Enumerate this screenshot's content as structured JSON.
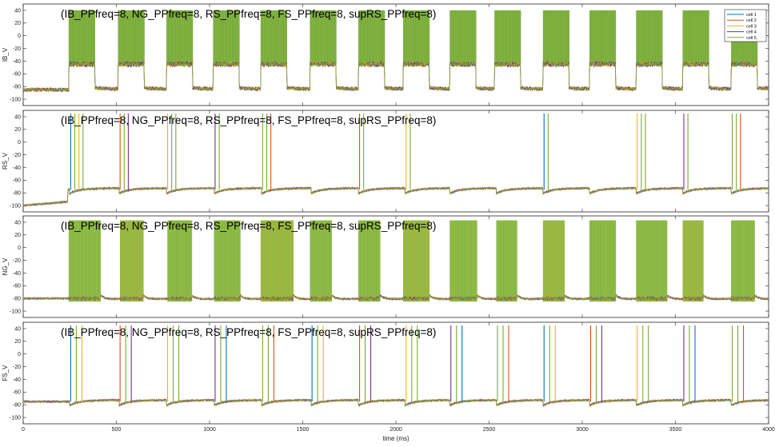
{
  "chart_data": {
    "type": "line",
    "x_label": "time (ms)",
    "x_range": [
      0,
      4000
    ],
    "x_ticks": [
      "0",
      "500",
      "1000",
      "1500",
      "2000",
      "2500",
      "3000",
      "3500",
      "4000"
    ],
    "legend": {
      "placement": "top-right",
      "entries": [
        {
          "name": "cell 1",
          "color": "#0072BD"
        },
        {
          "name": "cell 2",
          "color": "#D95319"
        },
        {
          "name": "cell 3",
          "color": "#EDB120"
        },
        {
          "name": "cell 4",
          "color": "#7E2F8E"
        },
        {
          "name": "cell 5",
          "color": "#77AC30"
        }
      ]
    },
    "panels": [
      {
        "id": "IB",
        "ylabel": "IB_V",
        "title": "(IB_PPfreq=8, NG_PPfreq=8, RS_PPfreq=8, FS_PPfreq=8, supRS_PPfreq=8)",
        "ylim": [
          -110,
          50
        ],
        "y_ticks": [
          "-100",
          "-80",
          "-60",
          "-40",
          "-20",
          "0",
          "20",
          "40"
        ],
        "baseline_mV": -85,
        "pattern": "burst",
        "events_ms": [
          245,
          510,
          770,
          1020,
          1275,
          1540,
          1800,
          2040,
          2290,
          2530,
          2790,
          3040,
          3290,
          3540,
          3800
        ],
        "burst_duration_ms": 140,
        "burst_range_mV": [
          -45,
          40
        ]
      },
      {
        "id": "RS",
        "ylabel": "RS_V",
        "title": "(IB_PPfreq=8, NG_PPfreq=8, RS_PPfreq=8, FS_PPfreq=8, supRS_PPfreq=8)",
        "ylim": [
          -110,
          50
        ],
        "y_ticks": [
          "-100",
          "-80",
          "-60",
          "-40",
          "-20",
          "0",
          "20",
          "40"
        ],
        "baseline_mV": -75,
        "initial_mV": -100,
        "pattern": "spikes",
        "events_ms": [
          250,
          515,
          770,
          1025,
          1280,
          1545,
          1800,
          2050,
          2290,
          2540,
          2790,
          3040,
          3290,
          3540,
          3800
        ],
        "spikes_per_event": [
          4,
          3,
          3,
          2,
          3,
          0,
          2,
          2,
          0,
          0,
          2,
          0,
          3,
          2,
          3
        ]
      },
      {
        "id": "NG",
        "ylabel": "NG_V",
        "title": "(IB_PPfreq=8, NG_PPfreq=8, RS_PPfreq=8, FS_PPfreq=8, supRS_PPfreq=8)",
        "ylim": [
          -110,
          50
        ],
        "y_ticks": [
          "-100",
          "-80",
          "-60",
          "-40",
          "-20",
          "0",
          "20",
          "40"
        ],
        "baseline_mV": -80,
        "pattern": "dense",
        "events_ms": [
          245,
          520,
          775,
          1025,
          1275,
          1540,
          1800,
          2040,
          2290,
          2540,
          2790,
          3040,
          3290,
          3540,
          3800
        ],
        "burst_duration_ms": [
          170,
          125,
          130,
          140,
          175,
          115,
          115,
          140,
          145,
          110,
          115,
          140,
          165,
          110,
          125
        ],
        "burst_range_mV": [
          -85,
          43
        ]
      },
      {
        "id": "FS",
        "ylabel": "FS_V",
        "title": "(IB_PPfreq=8, NG_PPfreq=8, RS_PPfreq=8, FS_PPfreq=8, supRS_PPfreq=8)",
        "ylim": [
          -110,
          50
        ],
        "y_ticks": [
          "-100",
          "-80",
          "-60",
          "-40",
          "-20",
          "0",
          "20",
          "40"
        ],
        "baseline_mV": -75,
        "pattern": "spikes",
        "events_ms": [
          250,
          515,
          770,
          1025,
          1280,
          1545,
          1800,
          2050,
          2290,
          2540,
          2790,
          3040,
          3290,
          3540,
          3800
        ],
        "spikes_per_event": [
          3,
          3,
          3,
          3,
          3,
          3,
          3,
          3,
          3,
          3,
          3,
          3,
          3,
          3,
          3
        ],
        "spike_interval_ms": 30
      }
    ]
  }
}
